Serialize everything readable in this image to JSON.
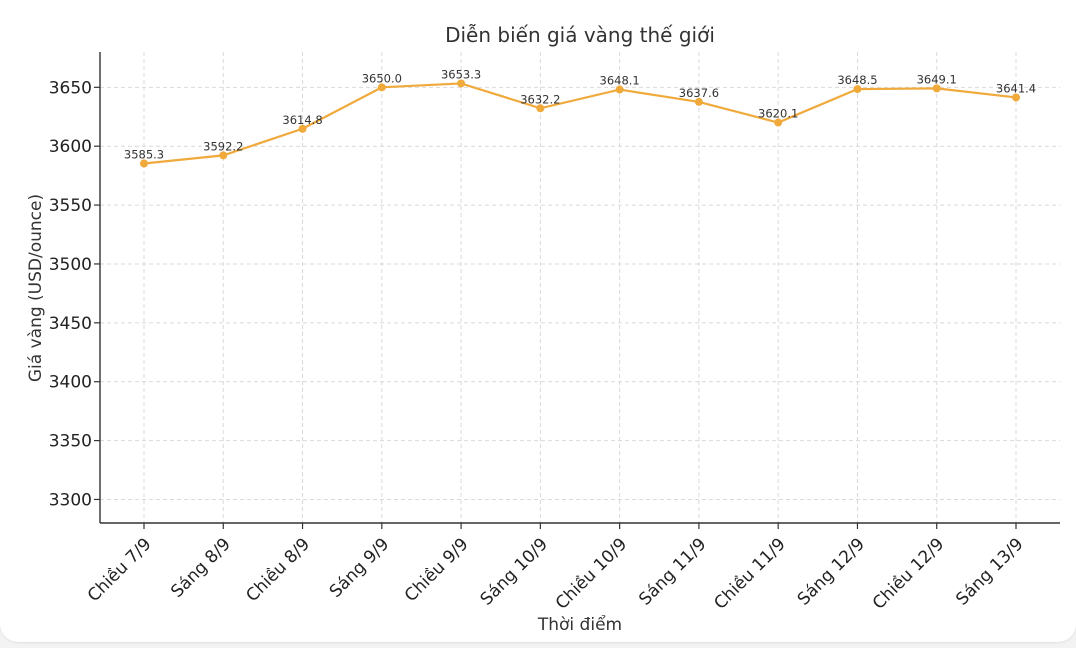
{
  "chart_data": {
    "type": "line",
    "title": "Diễn biến giá vàng thế giới",
    "xlabel": "Thời điểm",
    "ylabel": "Giá vàng (USD/ounce)",
    "categories": [
      "Chiều 7/9",
      "Sáng 8/9",
      "Chiều 8/9",
      "Sáng 9/9",
      "Chiều 9/9",
      "Sáng 10/9",
      "Chiều 10/9",
      "Sáng 11/9",
      "Chiều 11/9",
      "Sáng 12/9",
      "Chiều 12/9",
      "Sáng 13/9"
    ],
    "series": [
      {
        "values": [
          3585.3,
          3592.2,
          3614.8,
          3650.0,
          3653.3,
          3632.2,
          3648.1,
          3637.6,
          3620.1,
          3648.5,
          3649.1,
          3641.4
        ],
        "labels": [
          "3585.3",
          "3592.2",
          "3614.8",
          "3650.0",
          "3653.3",
          "3632.2",
          "3648.1",
          "3637.6",
          "3620.1",
          "3648.5",
          "3649.1",
          "3641.4"
        ],
        "color": "#f0a93b"
      }
    ],
    "yticks": [
      "3300",
      "3350",
      "3400",
      "3450",
      "3500",
      "3550",
      "3600",
      "3650"
    ],
    "ylim": [
      3280,
      3680
    ],
    "grid": true
  }
}
